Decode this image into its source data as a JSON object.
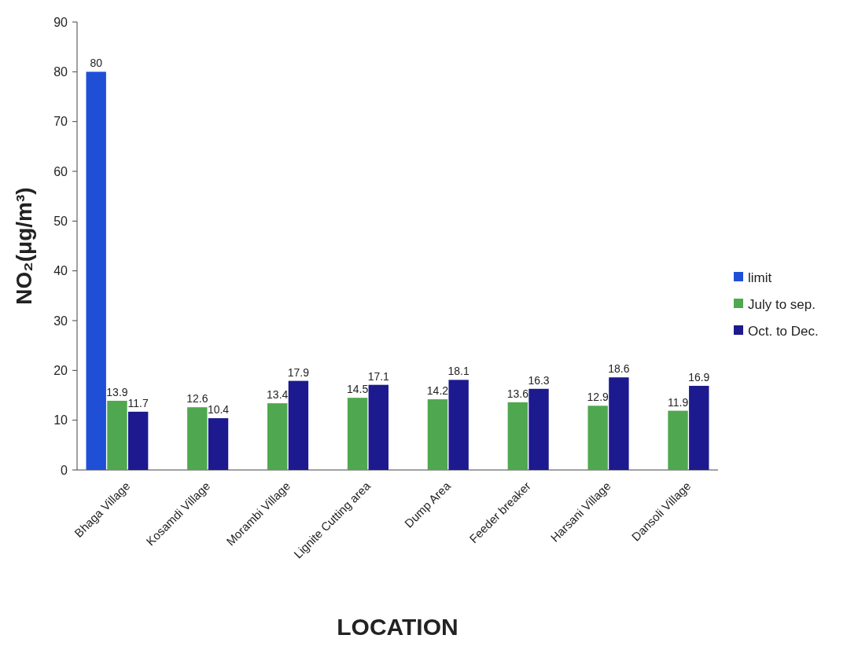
{
  "chart_data": {
    "type": "bar",
    "ylabel": "NO₂(μg/m³)",
    "xlabel": "LOCATION",
    "categories": [
      "Bhaga Village",
      "Kosamdi Village",
      "Morambi Village",
      "Lignite Cutting area",
      "Dump Area",
      "Feeder breaker",
      "Harsani Village",
      "Dansoli Village"
    ],
    "series": [
      {
        "name": "limit",
        "color": "#1f4fd6",
        "values": [
          80,
          null,
          null,
          null,
          null,
          null,
          null,
          null
        ]
      },
      {
        "name": "July to sep.",
        "color": "#4fa84f",
        "values": [
          13.9,
          12.6,
          13.4,
          14.5,
          14.2,
          13.6,
          12.9,
          11.9
        ]
      },
      {
        "name": "Oct. to Dec.",
        "color": "#1c1a8e",
        "values": [
          11.7,
          10.4,
          17.9,
          17.1,
          18.1,
          16.3,
          18.6,
          16.9
        ]
      }
    ],
    "ylim": [
      0,
      90
    ],
    "yticks": [
      0,
      10,
      20,
      30,
      40,
      50,
      60,
      70,
      80,
      90
    ],
    "data_labels": true,
    "legend": "right",
    "grid": false
  }
}
